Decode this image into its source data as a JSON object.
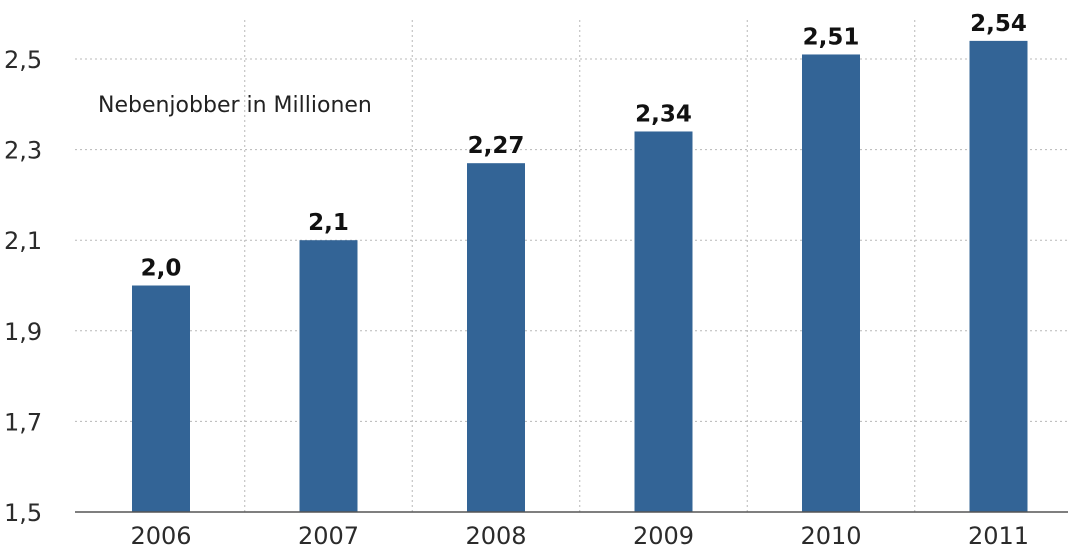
{
  "chart_data": {
    "type": "bar",
    "title": "Nebenjobber in Millionen",
    "categories": [
      "2006",
      "2007",
      "2008",
      "2009",
      "2010",
      "2011"
    ],
    "values": [
      2.0,
      2.1,
      2.27,
      2.34,
      2.51,
      2.54
    ],
    "value_labels": [
      "2,0",
      "2,1",
      "2,27",
      "2,34",
      "2,51",
      "2,54"
    ],
    "ylim": [
      1.5,
      2.54
    ],
    "yticks": [
      1.5,
      1.7,
      1.9,
      2.1,
      2.3,
      2.5
    ],
    "ytick_labels": [
      "1,5",
      "1,7",
      "1,9",
      "2,1",
      "2,3",
      "2,5"
    ],
    "grid": true,
    "bar_color": "#336496"
  }
}
